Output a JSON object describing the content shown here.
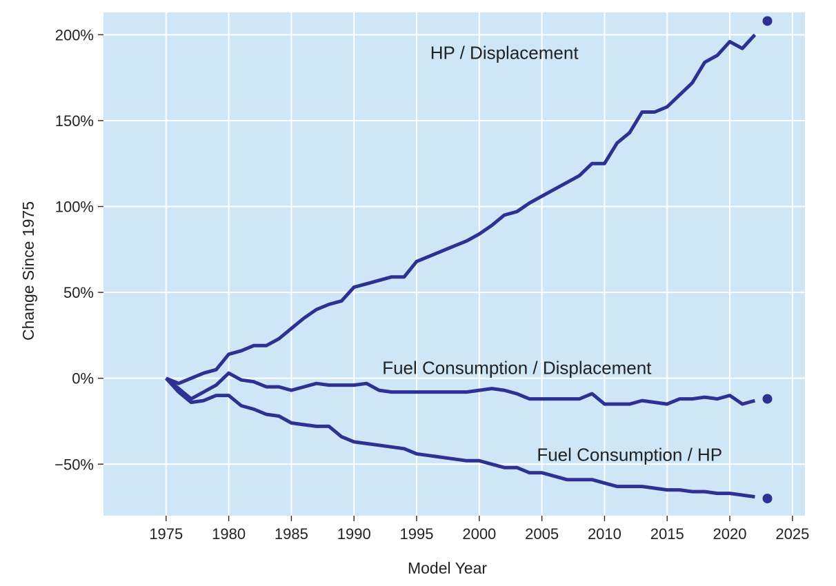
{
  "chart_data": {
    "type": "line",
    "title": "",
    "xlabel": "Model Year",
    "ylabel": "Change Since 1975",
    "xlim": [
      1970,
      2026
    ],
    "ylim": [
      -80,
      213
    ],
    "x_ticks": [
      1975,
      1980,
      1985,
      1990,
      1995,
      2000,
      2005,
      2010,
      2015,
      2020,
      2025
    ],
    "y_ticks": [
      -50,
      0,
      50,
      100,
      150,
      200
    ],
    "y_tick_labels": [
      "−50%",
      "0%",
      "50%",
      "100%",
      "150%",
      "200%"
    ],
    "grid": true,
    "legend": "none",
    "colors": {
      "background": "#cfe6f7",
      "grid": "#ffffff",
      "line": "#2e3192"
    },
    "annotations": [
      "HP / Displacement",
      "Fuel Consumption / Displacement",
      "Fuel Consumption / HP"
    ],
    "series": [
      {
        "x": [
          1975,
          1976,
          1977,
          1978,
          1979,
          1980,
          1981,
          1982,
          1983,
          1984,
          1985,
          1986,
          1987,
          1988,
          1989,
          1990,
          1991,
          1992,
          1993,
          1994,
          1995,
          1996,
          1997,
          1998,
          1999,
          2000,
          2001,
          2002,
          2003,
          2004,
          2005,
          2006,
          2007,
          2008,
          2009,
          2010,
          2011,
          2012,
          2013,
          2014,
          2015,
          2016,
          2017,
          2018,
          2019,
          2020,
          2021,
          2022
        ],
        "values": [
          0,
          -3,
          0,
          3,
          5,
          14,
          16,
          19,
          19,
          23,
          29,
          35,
          40,
          43,
          45,
          53,
          55,
          57,
          59,
          59,
          68,
          71,
          74,
          77,
          80,
          84,
          89,
          95,
          97,
          102,
          106,
          110,
          114,
          118,
          125,
          125,
          137,
          143,
          155,
          155,
          158,
          165,
          172,
          184,
          188,
          196,
          192,
          200
        ],
        "prelim": {
          "x": 2023,
          "value": 208
        }
      },
      {
        "x": [
          1975,
          1976,
          1977,
          1978,
          1979,
          1980,
          1981,
          1982,
          1983,
          1984,
          1985,
          1986,
          1987,
          1988,
          1989,
          1990,
          1991,
          1992,
          1993,
          1994,
          1995,
          1996,
          1997,
          1998,
          1999,
          2000,
          2001,
          2002,
          2003,
          2004,
          2005,
          2006,
          2007,
          2008,
          2009,
          2010,
          2011,
          2012,
          2013,
          2014,
          2015,
          2016,
          2017,
          2018,
          2019,
          2020,
          2021,
          2022
        ],
        "values": [
          0,
          -6,
          -12,
          -8,
          -4,
          3,
          -1,
          -2,
          -5,
          -5,
          -7,
          -5,
          -3,
          -4,
          -4,
          -4,
          -3,
          -7,
          -8,
          -8,
          -8,
          -8,
          -8,
          -8,
          -8,
          -7,
          -6,
          -7,
          -9,
          -12,
          -12,
          -12,
          -12,
          -12,
          -9,
          -15,
          -15,
          -15,
          -13,
          -14,
          -15,
          -12,
          -12,
          -11,
          -12,
          -10,
          -15,
          -13
        ],
        "prelim": {
          "x": 2023,
          "value": -12
        }
      },
      {
        "x": [
          1975,
          1976,
          1977,
          1978,
          1979,
          1980,
          1981,
          1982,
          1983,
          1984,
          1985,
          1986,
          1987,
          1988,
          1989,
          1990,
          1991,
          1992,
          1993,
          1994,
          1995,
          1996,
          1997,
          1998,
          1999,
          2000,
          2001,
          2002,
          2003,
          2004,
          2005,
          2006,
          2007,
          2008,
          2009,
          2010,
          2011,
          2012,
          2013,
          2014,
          2015,
          2016,
          2017,
          2018,
          2019,
          2020,
          2021,
          2022
        ],
        "values": [
          0,
          -8,
          -14,
          -13,
          -10,
          -10,
          -16,
          -18,
          -21,
          -22,
          -26,
          -27,
          -28,
          -28,
          -34,
          -37,
          -38,
          -39,
          -40,
          -41,
          -44,
          -45,
          -46,
          -47,
          -48,
          -48,
          -50,
          -52,
          -52,
          -55,
          -55,
          -57,
          -59,
          -59,
          -59,
          -61,
          -63,
          -63,
          -63,
          -64,
          -65,
          -65,
          -66,
          -66,
          -67,
          -67,
          -68,
          -69
        ],
        "prelim": {
          "x": 2023,
          "value": -70
        }
      }
    ]
  }
}
